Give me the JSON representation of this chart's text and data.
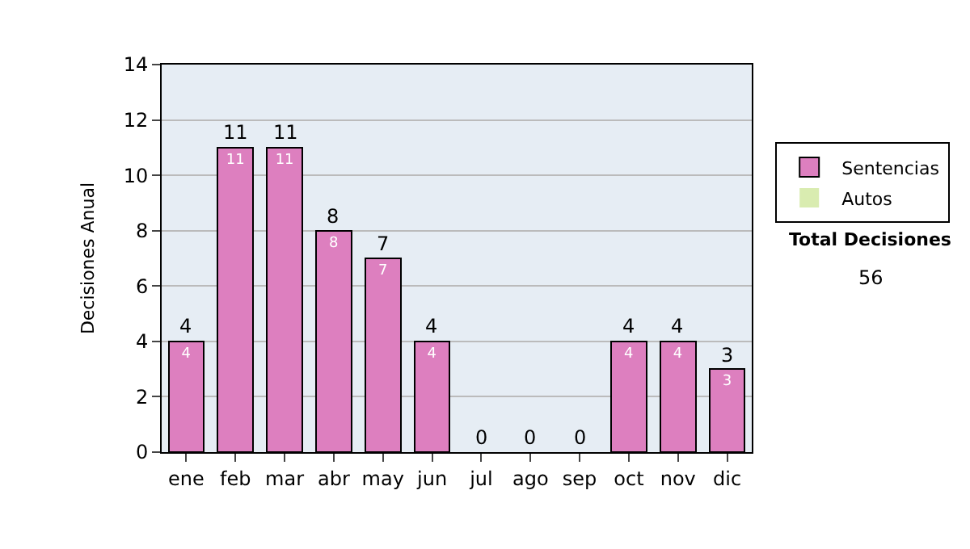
{
  "chart_data": {
    "type": "bar",
    "stacked": true,
    "ylabel": "Decisiones Anual",
    "categories": [
      "ene",
      "feb",
      "mar",
      "abr",
      "may",
      "jun",
      "jul",
      "ago",
      "sep",
      "oct",
      "nov",
      "dic"
    ],
    "series": [
      {
        "name": "Sentencias",
        "color": "#dd7fbf",
        "values": [
          4,
          11,
          11,
          8,
          7,
          4,
          0,
          0,
          0,
          4,
          4,
          3
        ],
        "value_labels": [
          "4",
          "11",
          "11",
          "8",
          "7",
          "4",
          null,
          null,
          null,
          "4",
          "4",
          "3"
        ]
      },
      {
        "name": "Autos",
        "color": "#d9ecb0",
        "values": [
          0,
          0,
          0,
          0,
          0,
          0,
          0,
          0,
          0,
          0,
          0,
          0
        ]
      }
    ],
    "totals": [
      "4",
      "11",
      "11",
      "8",
      "7",
      "4",
      "0",
      "0",
      "0",
      "4",
      "4",
      "3"
    ],
    "ylim": [
      0,
      14
    ],
    "yticks": [
      0,
      2,
      4,
      6,
      8,
      10,
      12,
      14
    ],
    "grid": "y",
    "legend": "right",
    "annotations": [
      "Total Decisiones",
      "56"
    ]
  }
}
